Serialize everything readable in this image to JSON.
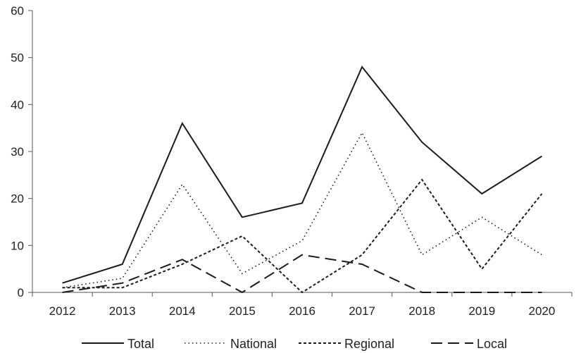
{
  "chart_data": {
    "type": "line",
    "categories": [
      "2012",
      "2013",
      "2014",
      "2015",
      "2016",
      "2017",
      "2018",
      "2019",
      "2020"
    ],
    "ylim": [
      0,
      60
    ],
    "yticks": [
      "0",
      "10",
      "20",
      "30",
      "40",
      "50",
      "60"
    ],
    "grid": false,
    "legend_position": "bottom",
    "series": [
      {
        "name": "Total",
        "style": "solid",
        "values": [
          2,
          6,
          36,
          16,
          19,
          48,
          32,
          21,
          29
        ]
      },
      {
        "name": "National",
        "style": "dotted",
        "values": [
          1,
          3,
          23,
          4,
          11,
          34,
          8,
          16,
          8
        ]
      },
      {
        "name": "Regional",
        "style": "short-dash",
        "values": [
          1,
          1,
          6,
          12,
          0,
          8,
          24,
          5,
          21
        ]
      },
      {
        "name": "Local",
        "style": "long-dash",
        "values": [
          0,
          2,
          7,
          0,
          8,
          6,
          0,
          0,
          0
        ]
      }
    ],
    "line_color": "#1a1a1a"
  }
}
